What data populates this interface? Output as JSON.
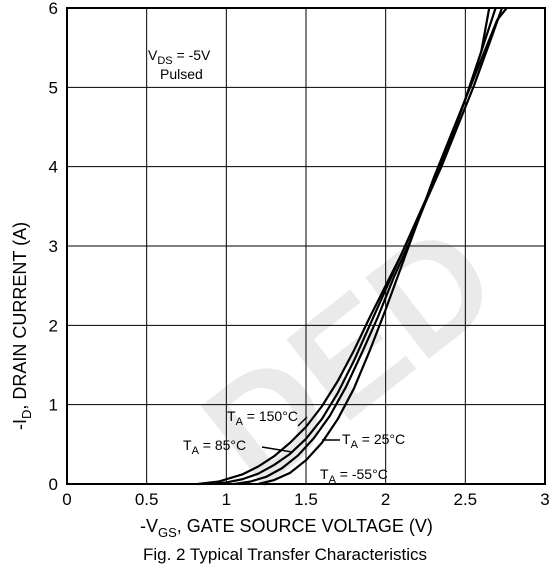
{
  "chart_data": {
    "type": "line",
    "xlabel": "-V",
    "xlabel_sub": "GS",
    "xlabel_rest": ", GATE SOURCE VOLTAGE (V)",
    "ylabel": "-I",
    "ylabel_sub": "D",
    "ylabel_rest": ", DRAIN CURRENT (A)",
    "caption": "Fig. 2  Typical Transfer Characteristics",
    "xlim": [
      0,
      3
    ],
    "ylim": [
      0,
      6
    ],
    "xticks": [
      0,
      0.5,
      1,
      1.5,
      2,
      2.5,
      3
    ],
    "xtick_labels": [
      "0",
      "0.5",
      "1",
      "1.5",
      "2",
      "2.5",
      "3"
    ],
    "yticks": [
      0,
      1,
      2,
      3,
      4,
      5,
      6
    ],
    "ytick_labels": [
      "0",
      "1",
      "2",
      "3",
      "4",
      "5",
      "6"
    ],
    "grid": true,
    "conditions": {
      "vds_main": "V",
      "vds_sub": "DS",
      "vds_rest": " = -5V",
      "mode": "Pulsed"
    },
    "series": [
      {
        "label_main": "T",
        "label_sub": "A",
        "label_rest": " = 150°C",
        "x": [
          0.82,
          0.95,
          1.1,
          1.2,
          1.3,
          1.4,
          1.5,
          1.6,
          1.7,
          1.8,
          1.9,
          2.0,
          2.1,
          2.2,
          2.3,
          2.4,
          2.5,
          2.6,
          2.65
        ],
        "y": [
          0,
          0.03,
          0.12,
          0.22,
          0.35,
          0.52,
          0.72,
          0.98,
          1.3,
          1.68,
          2.1,
          2.5,
          2.9,
          3.35,
          3.8,
          4.3,
          4.85,
          5.45,
          6.0
        ]
      },
      {
        "label_main": "T",
        "label_sub": "A",
        "label_rest": " = 85°C",
        "x": [
          0.9,
          1.0,
          1.1,
          1.2,
          1.3,
          1.4,
          1.5,
          1.6,
          1.7,
          1.8,
          1.9,
          2.0,
          2.1,
          2.2,
          2.3,
          2.4,
          2.5,
          2.6,
          2.69
        ],
        "y": [
          0,
          0.02,
          0.06,
          0.13,
          0.24,
          0.38,
          0.57,
          0.82,
          1.15,
          1.55,
          2.0,
          2.45,
          2.9,
          3.35,
          3.8,
          4.3,
          4.85,
          5.45,
          6.0
        ]
      },
      {
        "label_main": "T",
        "label_sub": "A",
        "label_rest": " = 25°C",
        "x": [
          1.05,
          1.15,
          1.25,
          1.35,
          1.45,
          1.55,
          1.65,
          1.75,
          1.85,
          1.95,
          2.05,
          2.15,
          2.25,
          2.35,
          2.45,
          2.55,
          2.65,
          2.73
        ],
        "y": [
          0,
          0.03,
          0.09,
          0.2,
          0.36,
          0.58,
          0.86,
          1.22,
          1.65,
          2.1,
          2.6,
          3.05,
          3.55,
          4.0,
          4.5,
          5.0,
          5.55,
          6.0
        ]
      },
      {
        "label_main": "T",
        "label_sub": "A",
        "label_rest": " = -55°C",
        "x": [
          1.2,
          1.3,
          1.4,
          1.5,
          1.6,
          1.7,
          1.8,
          1.9,
          2.0,
          2.1,
          2.2,
          2.3,
          2.4,
          2.5,
          2.6,
          2.7,
          2.76
        ],
        "y": [
          0,
          0.05,
          0.14,
          0.3,
          0.52,
          0.82,
          1.2,
          1.68,
          2.2,
          2.75,
          3.3,
          3.85,
          4.35,
          4.85,
          5.35,
          5.85,
          6.0
        ]
      }
    ]
  },
  "watermark": "DED"
}
